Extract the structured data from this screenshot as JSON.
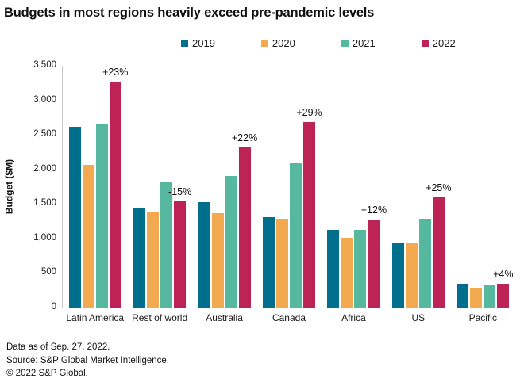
{
  "title": "Budgets in most regions heavily exceed pre-pandemic levels",
  "footer": {
    "line1": "Data as of Sep. 27, 2022.",
    "line2": "Source: S&P Global Market Intelligence.",
    "line3": "© 2022 S&P Global."
  },
  "chart_data": {
    "type": "bar",
    "title": "Budgets in most regions heavily exceed pre-pandemic levels",
    "xlabel": "",
    "ylabel": "Budget ($M)",
    "ylim": [
      0,
      3500
    ],
    "grid": false,
    "legend_position": "top",
    "ytick_values": [
      0,
      500,
      1000,
      1500,
      2000,
      2500,
      3000,
      3500
    ],
    "ytick_labels": [
      "0",
      "500",
      "1,000",
      "1,500",
      "2,000",
      "2,500",
      "3,000",
      "3,500"
    ],
    "categories": [
      "Latin America",
      "Rest of world",
      "Australia",
      "Canada",
      "Africa",
      "US",
      "Pacific"
    ],
    "series": [
      {
        "name": "2019",
        "color": "#006f8e",
        "values": [
          2620,
          1440,
          1530,
          1310,
          1120,
          940,
          340
        ]
      },
      {
        "name": "2020",
        "color": "#f2a950",
        "values": [
          2070,
          1390,
          1370,
          1290,
          1010,
          930,
          290
        ]
      },
      {
        "name": "2021",
        "color": "#56b99f",
        "values": [
          2660,
          1810,
          1900,
          2090,
          1130,
          1280,
          325
        ]
      },
      {
        "name": "2022",
        "color": "#be2355",
        "values": [
          3270,
          1540,
          2320,
          2690,
          1270,
          1590,
          340
        ]
      }
    ],
    "annotation_series": "2022",
    "annotations": [
      {
        "category": "Latin America",
        "label": "+23%"
      },
      {
        "category": "Rest of world",
        "label": "-15%"
      },
      {
        "category": "Australia",
        "label": "+22%"
      },
      {
        "category": "Canada",
        "label": "+29%"
      },
      {
        "category": "Africa",
        "label": "+12%"
      },
      {
        "category": "US",
        "label": "+25%"
      },
      {
        "category": "Pacific",
        "label": "+4%"
      }
    ]
  }
}
